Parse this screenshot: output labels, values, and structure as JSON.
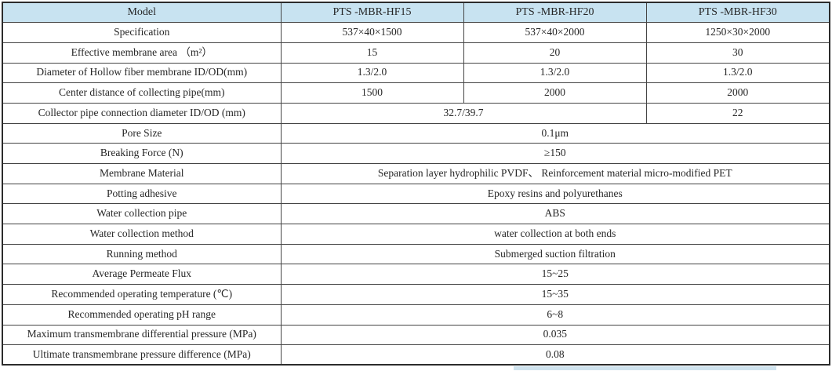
{
  "colors": {
    "header_bg": "#c8e3f1",
    "border": "#454545",
    "text": "#262626",
    "shadow_strip": "#cfe3ee"
  },
  "table": {
    "header": {
      "label": "Model",
      "models": [
        "PTS -MBR-HF15",
        "PTS -MBR-HF20",
        "PTS -MBR-HF30"
      ]
    },
    "rows": [
      {
        "label": "Specification",
        "cells": [
          {
            "text": "537×40×1500",
            "span": 1
          },
          {
            "text": "537×40×2000",
            "span": 1
          },
          {
            "text": "1250×30×2000",
            "span": 1
          }
        ]
      },
      {
        "label": "Effective membrane area （m²）",
        "cells": [
          {
            "text": "15",
            "span": 1
          },
          {
            "text": "20",
            "span": 1
          },
          {
            "text": "30",
            "span": 1
          }
        ]
      },
      {
        "label": "Diameter of Hollow fiber membrane ID/OD(mm)",
        "cells": [
          {
            "text": "1.3/2.0",
            "span": 1
          },
          {
            "text": "1.3/2.0",
            "span": 1
          },
          {
            "text": "1.3/2.0",
            "span": 1
          }
        ]
      },
      {
        "label": "Center distance of collecting pipe(mm)",
        "cells": [
          {
            "text": "1500",
            "span": 1
          },
          {
            "text": "2000",
            "span": 1
          },
          {
            "text": "2000",
            "span": 1
          }
        ]
      },
      {
        "label": "Collector pipe connection diameter ID/OD (mm)",
        "cells": [
          {
            "text": "32.7/39.7",
            "span": 2
          },
          {
            "text": "22",
            "span": 1
          }
        ]
      },
      {
        "label": "Pore Size",
        "cells": [
          {
            "text": "0.1μm",
            "span": 3
          }
        ]
      },
      {
        "label": "Breaking Force (N)",
        "cells": [
          {
            "text": "≥150",
            "span": 3
          }
        ]
      },
      {
        "label": "Membrane Material",
        "cells": [
          {
            "text": "Separation layer hydrophilic PVDF、 Reinforcement material micro-modified PET",
            "span": 3
          }
        ]
      },
      {
        "label": "Potting adhesive",
        "cells": [
          {
            "text": "Epoxy resins and polyurethanes",
            "span": 3
          }
        ]
      },
      {
        "label": "Water collection pipe",
        "cells": [
          {
            "text": "ABS",
            "span": 3
          }
        ]
      },
      {
        "label": "Water collection method",
        "cells": [
          {
            "text": "water collection at both ends",
            "span": 3
          }
        ]
      },
      {
        "label": "Running method",
        "cells": [
          {
            "text": "Submerged suction filtration",
            "span": 3
          }
        ]
      },
      {
        "label": "Average Permeate Flux",
        "cells": [
          {
            "text": "15~25",
            "span": 3
          }
        ]
      },
      {
        "label": "Recommended operating temperature (℃)",
        "cells": [
          {
            "text": "15~35",
            "span": 3
          }
        ]
      },
      {
        "label": "Recommended operating pH range",
        "cells": [
          {
            "text": "6~8",
            "span": 3
          }
        ]
      },
      {
        "label": "Maximum transmembrane differential pressure (MPa)",
        "cells": [
          {
            "text": "0.035",
            "span": 3
          }
        ]
      },
      {
        "label": "Ultimate transmembrane pressure difference (MPa)",
        "cells": [
          {
            "text": "0.08",
            "span": 3
          }
        ]
      }
    ]
  }
}
